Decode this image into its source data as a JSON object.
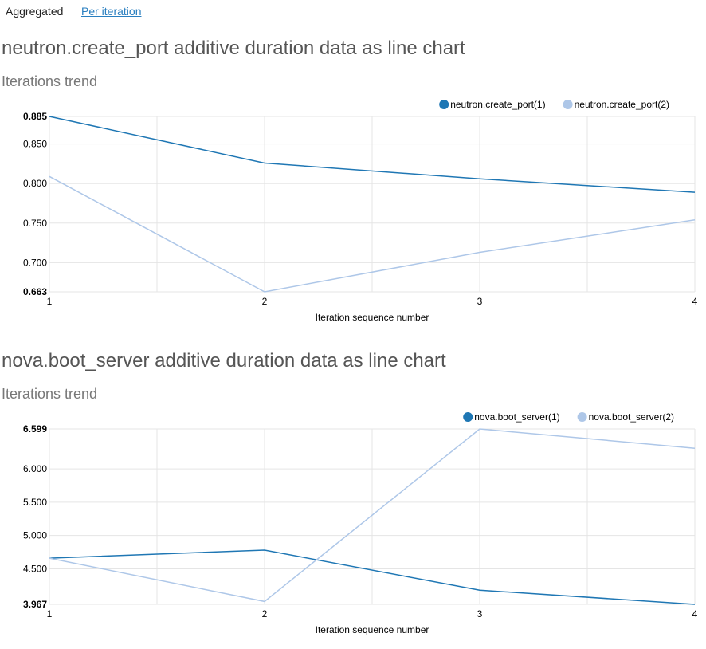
{
  "tabs": {
    "aggregated": "Aggregated",
    "per_iteration": "Per iteration"
  },
  "sections": [
    {
      "title": "neutron.create_port additive duration data as line chart",
      "subtitle": "Iterations trend"
    },
    {
      "title": "nova.boot_server additive duration data as line chart",
      "subtitle": "Iterations trend"
    }
  ],
  "chart_data": [
    {
      "type": "line",
      "title": "neutron.create_port additive duration data as line chart",
      "subtitle": "Iterations trend",
      "xlabel": "Iteration sequence number",
      "ylabel": "",
      "x": [
        1,
        2,
        3,
        4
      ],
      "x_ticks": [
        "1",
        "2",
        "3",
        "4"
      ],
      "xlim": [
        1,
        4
      ],
      "ylim": [
        0.663,
        0.885
      ],
      "y_ticks": [
        "0.663",
        "0.700",
        "0.750",
        "0.800",
        "0.850",
        "0.885"
      ],
      "grid": true,
      "legend_position": "top-right",
      "series": [
        {
          "name": "neutron.create_port(1)",
          "color": "#1f77b4",
          "values": [
            0.885,
            0.826,
            0.806,
            0.789
          ]
        },
        {
          "name": "neutron.create_port(2)",
          "color": "#aec7e8",
          "values": [
            0.809,
            0.663,
            0.713,
            0.754
          ]
        }
      ]
    },
    {
      "type": "line",
      "title": "nova.boot_server additive duration data as line chart",
      "subtitle": "Iterations trend",
      "xlabel": "Iteration sequence number",
      "ylabel": "",
      "x": [
        1,
        2,
        3,
        4
      ],
      "x_ticks": [
        "1",
        "2",
        "3",
        "4"
      ],
      "xlim": [
        1,
        4
      ],
      "ylim": [
        3.967,
        6.599
      ],
      "y_ticks": [
        "3.967",
        "4.500",
        "5.000",
        "5.500",
        "6.000",
        "6.599"
      ],
      "grid": true,
      "legend_position": "top-right",
      "series": [
        {
          "name": "nova.boot_server(1)",
          "color": "#1f77b4",
          "values": [
            4.66,
            4.78,
            4.18,
            3.967
          ]
        },
        {
          "name": "nova.boot_server(2)",
          "color": "#aec7e8",
          "values": [
            4.66,
            4.01,
            6.599,
            6.31
          ]
        }
      ]
    }
  ]
}
